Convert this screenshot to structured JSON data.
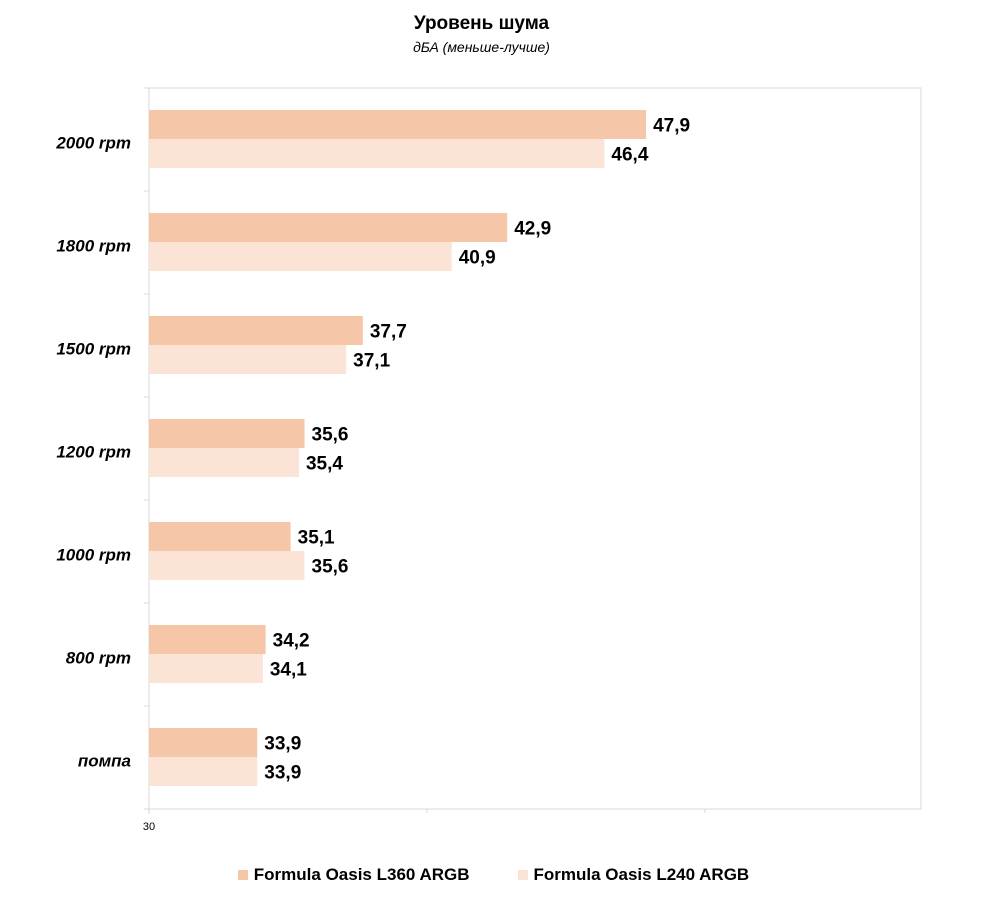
{
  "chart_data": {
    "type": "bar",
    "orientation": "horizontal",
    "title": "Уровень шума",
    "subtitle": "дБА (меньше-лучше)",
    "categories": [
      "2000 rpm",
      "1800 rpm",
      "1500 rpm",
      "1200 rpm",
      "1000 rpm",
      "800 rpm",
      "помпа"
    ],
    "series": [
      {
        "name": "Formula Oasis L360 ARGB",
        "color": "#f6c6a8",
        "values": [
          47.9,
          42.9,
          37.7,
          35.6,
          35.1,
          34.2,
          33.9
        ],
        "labels": [
          "47,9",
          "42,9",
          "37,7",
          "35,6",
          "35,1",
          "34,2",
          "33,9"
        ]
      },
      {
        "name": "Formula Oasis L240 ARGB",
        "color": "#fbe3d5",
        "values": [
          46.4,
          40.9,
          37.1,
          35.4,
          35.6,
          34.1,
          33.9
        ],
        "labels": [
          "46,4",
          "40,9",
          "37,1",
          "35,4",
          "35,6",
          "34,1",
          "33,9"
        ]
      }
    ],
    "xlim": [
      30,
      57.8
    ],
    "x_ticks": [
      "30"
    ],
    "grid": false,
    "legend_position": "bottom"
  }
}
